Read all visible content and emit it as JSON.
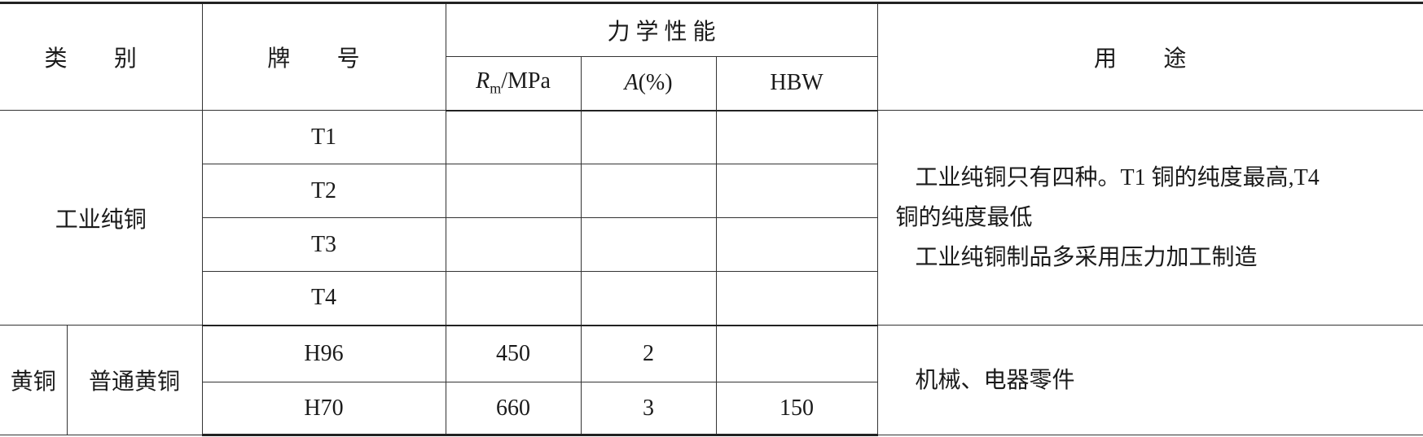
{
  "header": {
    "category": "类  别",
    "grade": "牌  号",
    "mechanical": "力 学 性 能",
    "rm_symbol": "R",
    "rm_sub": "m",
    "rm_unit": "/MPa",
    "a_symbol": "A",
    "a_unit": "(%)",
    "hbw": "HBW",
    "usage": "用    途"
  },
  "groups": [
    {
      "category": "工业纯铜",
      "rows": [
        {
          "grade": "T1",
          "rm": "",
          "a": "",
          "hbw": ""
        },
        {
          "grade": "T2",
          "rm": "",
          "a": "",
          "hbw": ""
        },
        {
          "grade": "T3",
          "rm": "",
          "a": "",
          "hbw": ""
        },
        {
          "grade": "T4",
          "rm": "",
          "a": "",
          "hbw": ""
        }
      ],
      "usage": [
        "工业纯铜只有四种。T1 铜的纯度最高,T4",
        "铜的纯度最低",
        "工业纯铜制品多采用压力加工制造"
      ]
    },
    {
      "category": "黄铜",
      "subcategory": "普通黄铜",
      "rows": [
        {
          "grade": "H96",
          "rm": "450",
          "a": "2",
          "hbw": ""
        },
        {
          "grade": "H70",
          "rm": "660",
          "a": "3",
          "hbw": "150"
        }
      ],
      "usage": [
        "机械、电器零件"
      ]
    }
  ]
}
